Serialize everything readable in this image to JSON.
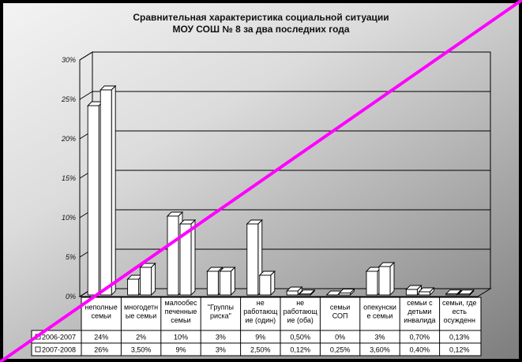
{
  "chart_data": {
    "type": "bar",
    "title": [
      "Сравнительная характеристика социальной ситуации",
      "МОУ СОШ № 8 за два последних года"
    ],
    "ylim": [
      0,
      30
    ],
    "yticks": [
      "0%",
      "5%",
      "10%",
      "15%",
      "20%",
      "25%",
      "30%"
    ],
    "grid": true,
    "categories": [
      [
        "неполные",
        "семьи"
      ],
      [
        "многодетн",
        "ые семьи"
      ],
      [
        "малообес",
        "печенные",
        "семьи"
      ],
      [
        "\"Группы",
        "риска\""
      ],
      [
        "не",
        "работающ",
        "ие (один)"
      ],
      [
        "не",
        "работающ",
        "ие (оба)"
      ],
      [
        "семьи",
        "СОП"
      ],
      [
        "опекунски",
        "е семьи"
      ],
      [
        "семьи с",
        "детьми",
        "инвалида"
      ],
      [
        "семьи, где",
        "есть",
        "осужденн"
      ]
    ],
    "series": [
      {
        "name": "2006-2007",
        "values": [
          24,
          2,
          10,
          3,
          9,
          0.5,
          0,
          3,
          0.7,
          0.13
        ],
        "labels": [
          "24%",
          "2%",
          "10%",
          "3%",
          "9%",
          "0,50%",
          "0%",
          "3%",
          "0,70%",
          "0,13%"
        ]
      },
      {
        "name": "2007-2008",
        "values": [
          26,
          3.5,
          9,
          3,
          2.5,
          0.12,
          0.25,
          3.6,
          0.4,
          0.12
        ],
        "labels": [
          "26%",
          "3,50%",
          "9%",
          "3%",
          "2,50%",
          "0,12%",
          "0,25%",
          "3,60%",
          "0,40%",
          "0,12%"
        ]
      }
    ],
    "colors": {
      "bar_fill": "#ffffff",
      "bar_edge": "#000000",
      "slash": "#ff00ff"
    }
  }
}
